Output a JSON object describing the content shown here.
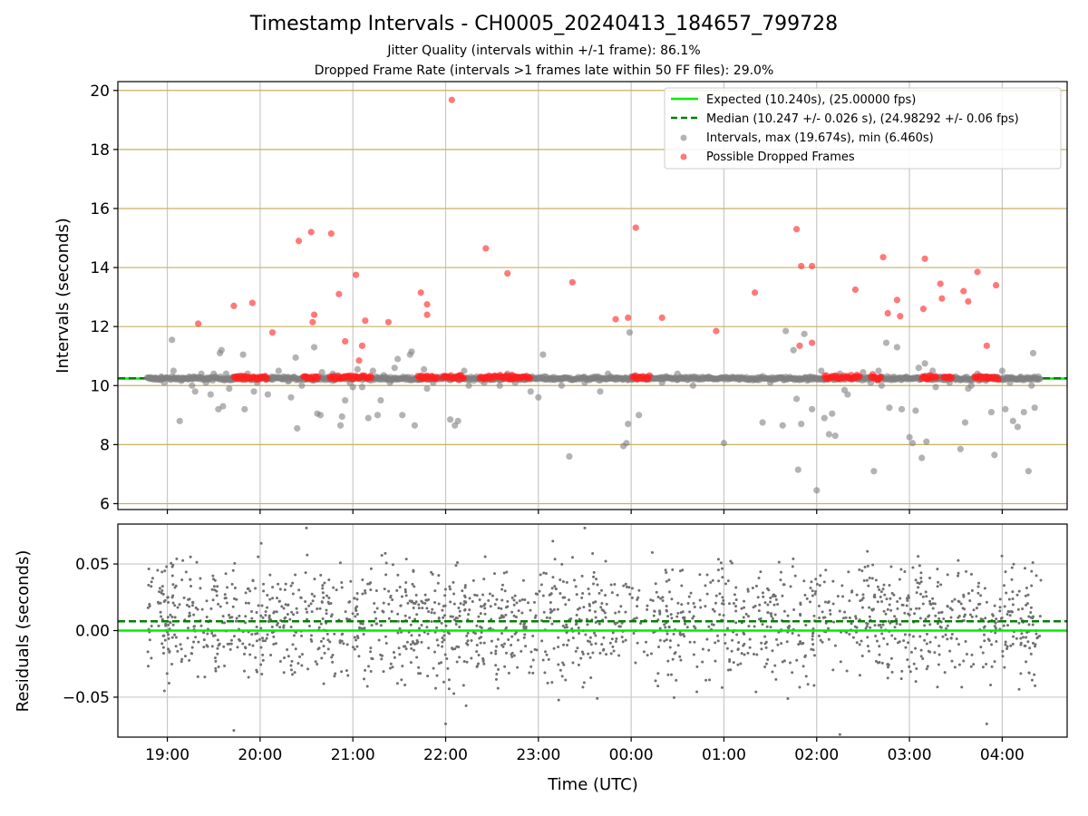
{
  "chart_data": [
    {
      "type": "scatter",
      "title": "Timestamp Intervals - CH0005_20240413_184657_799728",
      "subtitle_lines": [
        "Jitter Quality (intervals within +/-1 frame): 86.1%",
        "Dropped Frame Rate (intervals >1 frames late within 50 FF files): 29.0%"
      ],
      "ylabel": "Intervals (seconds)",
      "xlabel": "",
      "ylim": [
        5.8,
        20.3
      ],
      "xlim": [
        "18:28",
        "04:42"
      ],
      "yticks": [
        6,
        8,
        10,
        12,
        14,
        16,
        18,
        20
      ],
      "xticks": [
        "19:00",
        "20:00",
        "21:00",
        "22:00",
        "23:00",
        "00:00",
        "01:00",
        "02:00",
        "03:00",
        "04:00"
      ],
      "grid": {
        "vertical": true,
        "horizontal": true,
        "horizontal_color": "#c8b060"
      },
      "legend_position": "top-right",
      "lines": [
        {
          "name": "Expected (10.240s), (25.00000 fps)",
          "y": 10.24,
          "color": "#00ee00",
          "style": "solid"
        },
        {
          "name": "Median (10.247 +/- 0.026 s), (24.98292 +/- 0.06 fps)",
          "y": 10.247,
          "color": "#008000",
          "style": "dashed"
        }
      ],
      "series": [
        {
          "name": "Intervals, max (19.674s), min (6.460s)",
          "color": "#808080",
          "points": [
            [
              "18:50",
              10.24
            ],
            [
              "18:53",
              10.2
            ],
            [
              "18:56",
              10.3
            ],
            [
              "18:58",
              10.1
            ],
            [
              "19:03",
              11.55
            ],
            [
              "19:04",
              10.5
            ],
            [
              "19:08",
              8.8
            ],
            [
              "19:10",
              10.2
            ],
            [
              "19:14",
              10.3
            ],
            [
              "19:16",
              10.0
            ],
            [
              "19:17",
              10.3
            ],
            [
              "19:18",
              9.8
            ],
            [
              "19:22",
              10.4
            ],
            [
              "19:25",
              10.1
            ],
            [
              "19:27",
              10.2
            ],
            [
              "19:28",
              9.7
            ],
            [
              "19:30",
              10.4
            ],
            [
              "19:33",
              9.2
            ],
            [
              "19:34",
              11.1
            ],
            [
              "19:35",
              11.2
            ],
            [
              "19:36",
              9.3
            ],
            [
              "19:38",
              10.4
            ],
            [
              "19:40",
              9.9
            ],
            [
              "19:42",
              10.2
            ],
            [
              "19:45",
              10.3
            ],
            [
              "19:49",
              11.05
            ],
            [
              "19:50",
              9.2
            ],
            [
              "19:52",
              10.4
            ],
            [
              "19:56",
              9.8
            ],
            [
              "19:58",
              10.1
            ],
            [
              "20:01",
              10.3
            ],
            [
              "20:05",
              9.7
            ],
            [
              "20:08",
              10.2
            ],
            [
              "20:12",
              10.5
            ],
            [
              "20:15",
              10.3
            ],
            [
              "20:18",
              10.15
            ],
            [
              "20:20",
              9.6
            ],
            [
              "20:23",
              10.95
            ],
            [
              "20:24",
              8.55
            ],
            [
              "20:27",
              10.0
            ],
            [
              "20:30",
              10.3
            ],
            [
              "20:35",
              11.3
            ],
            [
              "20:37",
              9.05
            ],
            [
              "20:39",
              9.0
            ],
            [
              "20:40",
              10.45
            ],
            [
              "20:44",
              10.2
            ],
            [
              "20:47",
              10.4
            ],
            [
              "20:52",
              8.65
            ],
            [
              "20:53",
              8.95
            ],
            [
              "20:55",
              9.5
            ],
            [
              "20:58",
              10.1
            ],
            [
              "21:00",
              9.95
            ],
            [
              "21:03",
              10.55
            ],
            [
              "21:06",
              9.95
            ],
            [
              "21:10",
              8.9
            ],
            [
              "21:13",
              10.5
            ],
            [
              "21:16",
              9.0
            ],
            [
              "21:18",
              9.5
            ],
            [
              "21:20",
              10.35
            ],
            [
              "21:22",
              10.2
            ],
            [
              "21:24",
              10.1
            ],
            [
              "21:27",
              10.6
            ],
            [
              "21:29",
              10.9
            ],
            [
              "21:32",
              9.0
            ],
            [
              "21:37",
              11.05
            ],
            [
              "21:38",
              11.15
            ],
            [
              "21:40",
              8.65
            ],
            [
              "21:43",
              10.2
            ],
            [
              "21:46",
              10.55
            ],
            [
              "21:48",
              9.9
            ],
            [
              "21:52",
              10.1
            ],
            [
              "22:01",
              10.3
            ],
            [
              "22:03",
              8.85
            ],
            [
              "22:06",
              8.65
            ],
            [
              "22:08",
              8.8
            ],
            [
              "22:12",
              10.5
            ],
            [
              "22:15",
              10.0
            ],
            [
              "22:20",
              10.3
            ],
            [
              "22:25",
              10.1
            ],
            [
              "22:30",
              10.2
            ],
            [
              "22:35",
              10.0
            ],
            [
              "22:40",
              10.4
            ],
            [
              "22:45",
              10.1
            ],
            [
              "22:50",
              10.3
            ],
            [
              "22:55",
              9.8
            ],
            [
              "23:00",
              9.6
            ],
            [
              "23:03",
              11.05
            ],
            [
              "23:05",
              10.3
            ],
            [
              "23:10",
              10.2
            ],
            [
              "23:15",
              10.0
            ],
            [
              "23:20",
              7.6
            ],
            [
              "23:30",
              10.1
            ],
            [
              "23:40",
              9.8
            ],
            [
              "23:45",
              10.4
            ],
            [
              "23:50",
              10.2
            ],
            [
              "23:55",
              7.95
            ],
            [
              "23:57",
              8.05
            ],
            [
              "23:58",
              8.7
            ],
            [
              "23:59",
              11.8
            ],
            [
              "00:01",
              10.3
            ],
            [
              "00:05",
              9.0
            ],
            [
              "00:10",
              10.2
            ],
            [
              "00:20",
              10.1
            ],
            [
              "00:30",
              10.4
            ],
            [
              "00:40",
              10.0
            ],
            [
              "00:50",
              10.3
            ],
            [
              "01:00",
              8.05
            ],
            [
              "01:10",
              10.2
            ],
            [
              "01:20",
              10.2
            ],
            [
              "01:25",
              8.75
            ],
            [
              "01:30",
              10.1
            ],
            [
              "01:38",
              8.65
            ],
            [
              "01:40",
              11.85
            ],
            [
              "01:45",
              11.2
            ],
            [
              "01:47",
              9.55
            ],
            [
              "01:48",
              7.15
            ],
            [
              "01:50",
              8.7
            ],
            [
              "01:52",
              11.75
            ],
            [
              "01:55",
              10.2
            ],
            [
              "01:57",
              9.2
            ],
            [
              "02:00",
              6.45
            ],
            [
              "02:03",
              10.5
            ],
            [
              "02:05",
              8.9
            ],
            [
              "02:08",
              8.35
            ],
            [
              "02:10",
              9.05
            ],
            [
              "02:12",
              8.3
            ],
            [
              "02:15",
              10.4
            ],
            [
              "02:18",
              9.85
            ],
            [
              "02:20",
              9.7
            ],
            [
              "02:25",
              10.3
            ],
            [
              "02:30",
              10.45
            ],
            [
              "02:35",
              10.1
            ],
            [
              "02:37",
              7.1
            ],
            [
              "02:40",
              10.5
            ],
            [
              "02:42",
              10.0
            ],
            [
              "02:45",
              11.45
            ],
            [
              "02:47",
              9.25
            ],
            [
              "02:50",
              10.2
            ],
            [
              "02:52",
              11.3
            ],
            [
              "02:55",
              9.2
            ],
            [
              "02:58",
              10.3
            ],
            [
              "03:00",
              8.25
            ],
            [
              "03:02",
              8.05
            ],
            [
              "03:04",
              9.15
            ],
            [
              "03:06",
              10.6
            ],
            [
              "03:08",
              7.55
            ],
            [
              "03:10",
              10.75
            ],
            [
              "03:11",
              8.1
            ],
            [
              "03:15",
              10.5
            ],
            [
              "03:17",
              9.95
            ],
            [
              "03:20",
              10.3
            ],
            [
              "03:23",
              10.2
            ],
            [
              "03:26",
              10.1
            ],
            [
              "03:30",
              10.3
            ],
            [
              "03:33",
              7.85
            ],
            [
              "03:36",
              8.75
            ],
            [
              "03:38",
              9.9
            ],
            [
              "03:40",
              10.0
            ],
            [
              "03:44",
              10.4
            ],
            [
              "03:50",
              10.3
            ],
            [
              "03:53",
              9.1
            ],
            [
              "03:55",
              7.65
            ],
            [
              "04:00",
              10.5
            ],
            [
              "04:02",
              9.2
            ],
            [
              "04:05",
              10.1
            ],
            [
              "04:07",
              8.8
            ],
            [
              "04:10",
              8.6
            ],
            [
              "04:12",
              10.3
            ],
            [
              "04:14",
              9.1
            ],
            [
              "04:17",
              7.1
            ],
            [
              "04:19",
              10.0
            ],
            [
              "04:20",
              11.1
            ],
            [
              "04:21",
              9.25
            ],
            [
              "04:23",
              10.2
            ]
          ]
        },
        {
          "name": "Possible Dropped Frames",
          "color": "#ff2020",
          "points": [
            [
              "19:20",
              12.1
            ],
            [
              "19:43",
              12.7
            ],
            [
              "19:55",
              12.8
            ],
            [
              "20:08",
              11.8
            ],
            [
              "20:25",
              14.9
            ],
            [
              "20:33",
              15.2
            ],
            [
              "20:34",
              12.15
            ],
            [
              "20:35",
              12.4
            ],
            [
              "20:46",
              15.15
            ],
            [
              "20:51",
              13.1
            ],
            [
              "20:55",
              11.5
            ],
            [
              "21:02",
              13.75
            ],
            [
              "21:04",
              10.85
            ],
            [
              "21:06",
              11.35
            ],
            [
              "21:08",
              12.2
            ],
            [
              "21:23",
              12.15
            ],
            [
              "21:44",
              13.15
            ],
            [
              "21:48",
              12.75
            ],
            [
              "21:48",
              12.4
            ],
            [
              "22:04",
              19.68
            ],
            [
              "22:26",
              14.65
            ],
            [
              "22:40",
              13.8
            ],
            [
              "23:22",
              13.5
            ],
            [
              "23:50",
              12.25
            ],
            [
              "23:58",
              12.3
            ],
            [
              "00:03",
              15.35
            ],
            [
              "00:20",
              12.3
            ],
            [
              "00:55",
              11.85
            ],
            [
              "01:20",
              13.15
            ],
            [
              "01:47",
              15.3
            ],
            [
              "01:49",
              11.35
            ],
            [
              "01:50",
              14.05
            ],
            [
              "01:57",
              14.05
            ],
            [
              "01:57",
              11.45
            ],
            [
              "02:25",
              13.25
            ],
            [
              "02:43",
              14.35
            ],
            [
              "02:46",
              12.45
            ],
            [
              "02:52",
              12.9
            ],
            [
              "02:54",
              12.35
            ],
            [
              "03:09",
              12.6
            ],
            [
              "03:10",
              14.3
            ],
            [
              "03:20",
              13.45
            ],
            [
              "03:21",
              12.95
            ],
            [
              "03:35",
              13.2
            ],
            [
              "03:38",
              12.85
            ],
            [
              "03:44",
              13.85
            ],
            [
              "03:50",
              11.35
            ],
            [
              "03:56",
              13.4
            ]
          ]
        }
      ]
    },
    {
      "type": "scatter",
      "title": "",
      "ylabel": "Residuals (seconds)",
      "xlabel": "Time (UTC)",
      "ylim": [
        -0.08,
        0.08
      ],
      "yticks": [
        "0.05",
        "0.00",
        "−0.05"
      ],
      "ytick_values": [
        0.05,
        0.0,
        -0.05
      ],
      "xticks": [
        "19:00",
        "20:00",
        "21:00",
        "22:00",
        "23:00",
        "00:00",
        "01:00",
        "02:00",
        "03:00",
        "04:00"
      ],
      "grid": true,
      "lines": [
        {
          "name": "",
          "y": 0.0,
          "color": "#00ee00",
          "style": "solid"
        },
        {
          "name": "",
          "y": 0.007,
          "color": "#008000",
          "style": "dashed"
        }
      ],
      "series": [
        {
          "name": "",
          "color": "#707070",
          "x_range": [
            "18:47",
            "04:25"
          ],
          "approx_count": 1800,
          "center": 0.007,
          "spread": 0.022,
          "extremes": [
            [
              "19:43",
              -0.075
            ],
            [
              "22:00",
              -0.07
            ],
            [
              "23:30",
              0.077
            ],
            [
              "20:30",
              0.077
            ],
            [
              "03:50",
              -0.07
            ],
            [
              "02:15",
              -0.078
            ]
          ]
        }
      ]
    }
  ]
}
